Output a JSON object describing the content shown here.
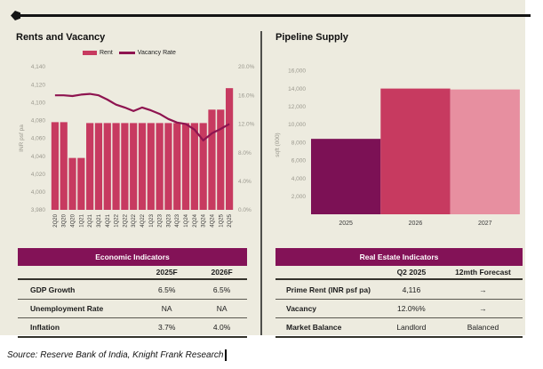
{
  "page": {
    "source_note": "Source: Reserve Bank of India, Knight Frank Research"
  },
  "colors": {
    "panel_bg": "#EDEBDF",
    "rent_bar": "#C73A60",
    "vacancy_line": "#8E1450",
    "supply_bar_colors": [
      "#7C1155",
      "#C73A60",
      "#E78FA0"
    ],
    "table_header_bg": "#831257",
    "tick_text": "#9A988E",
    "category_text": "#3a3a3a"
  },
  "chart_data": [
    {
      "type": "bar+line",
      "title": "Rents and Vacancy",
      "legend": [
        {
          "label": "Rent",
          "swatch": "bar",
          "color": "#C73A60"
        },
        {
          "label": "Vacancy Rate",
          "swatch": "line",
          "color": "#8E1450"
        }
      ],
      "legend_position": "top",
      "grid": false,
      "categories": [
        "2Q20",
        "3Q20",
        "4Q20",
        "1Q21",
        "2Q21",
        "3Q21",
        "4Q21",
        "1Q22",
        "2Q22",
        "3Q22",
        "4Q22",
        "1Q23",
        "2Q23",
        "3Q23",
        "4Q23",
        "1Q24",
        "2Q24",
        "3Q24",
        "4Q24",
        "1Q25",
        "2Q25"
      ],
      "series": [
        {
          "name": "Rent",
          "type": "bar",
          "axis": "left",
          "values": [
            4078,
            4078,
            4038,
            4038,
            4077,
            4077,
            4077,
            4077,
            4077,
            4077,
            4077,
            4077,
            4077,
            4077,
            4077,
            4077,
            4077,
            4077,
            4092,
            4092,
            4116
          ]
        },
        {
          "name": "Vacancy Rate",
          "type": "line",
          "axis": "right",
          "values": [
            16.0,
            16.0,
            15.9,
            16.1,
            16.2,
            16.0,
            15.4,
            14.7,
            14.3,
            13.8,
            14.3,
            13.9,
            13.4,
            12.7,
            12.2,
            12.0,
            11.2,
            9.7,
            10.7,
            11.3,
            12.0
          ]
        }
      ],
      "left_axis": {
        "label": "INR psf pa",
        "min": 3980,
        "max": 4140,
        "ticks": [
          "4,140",
          "4,120",
          "4,100",
          "4,080",
          "4,060",
          "4,040",
          "4,020",
          "4,000",
          "3,980"
        ]
      },
      "right_axis": {
        "label": "",
        "min": 0,
        "max": 20,
        "ticks": [
          "20.0%",
          "16.0%",
          "12.0%",
          "8.0%",
          "4.0%",
          "0.0%"
        ]
      }
    },
    {
      "type": "bar",
      "title": "Pipeline Supply",
      "grid": false,
      "categories": [
        "2025",
        "2026",
        "2027"
      ],
      "values": [
        8400,
        14000,
        13900
      ],
      "xlabel": "",
      "ylabel": "sqft (000)",
      "ylim": [
        0,
        16000
      ],
      "yticks": [
        "16,000",
        "14,000",
        "12,000",
        "10,000",
        "8,000",
        "6,000",
        "4,000",
        "2,000"
      ]
    }
  ],
  "tables": {
    "economic": {
      "title": "Economic Indicators",
      "columns": [
        "",
        "2025F",
        "2026F"
      ],
      "rows": [
        {
          "label": "GDP Growth",
          "values": [
            "6.5%",
            "6.5%"
          ]
        },
        {
          "label": "Unemployment Rate",
          "values": [
            "NA",
            "NA"
          ]
        },
        {
          "label": "Inflation",
          "values": [
            "3.7%",
            "4.0%"
          ]
        }
      ]
    },
    "real_estate": {
      "title": "Real Estate Indicators",
      "columns": [
        "",
        "Q2 2025",
        "12mth Forecast"
      ],
      "rows": [
        {
          "label": "Prime Rent (INR psf pa)",
          "values": [
            "4,116",
            "→"
          ]
        },
        {
          "label": "Vacancy",
          "values": [
            "12.0%%",
            "→"
          ]
        },
        {
          "label": "Market Balance",
          "values": [
            "Landlord",
            "Balanced"
          ]
        }
      ]
    }
  }
}
